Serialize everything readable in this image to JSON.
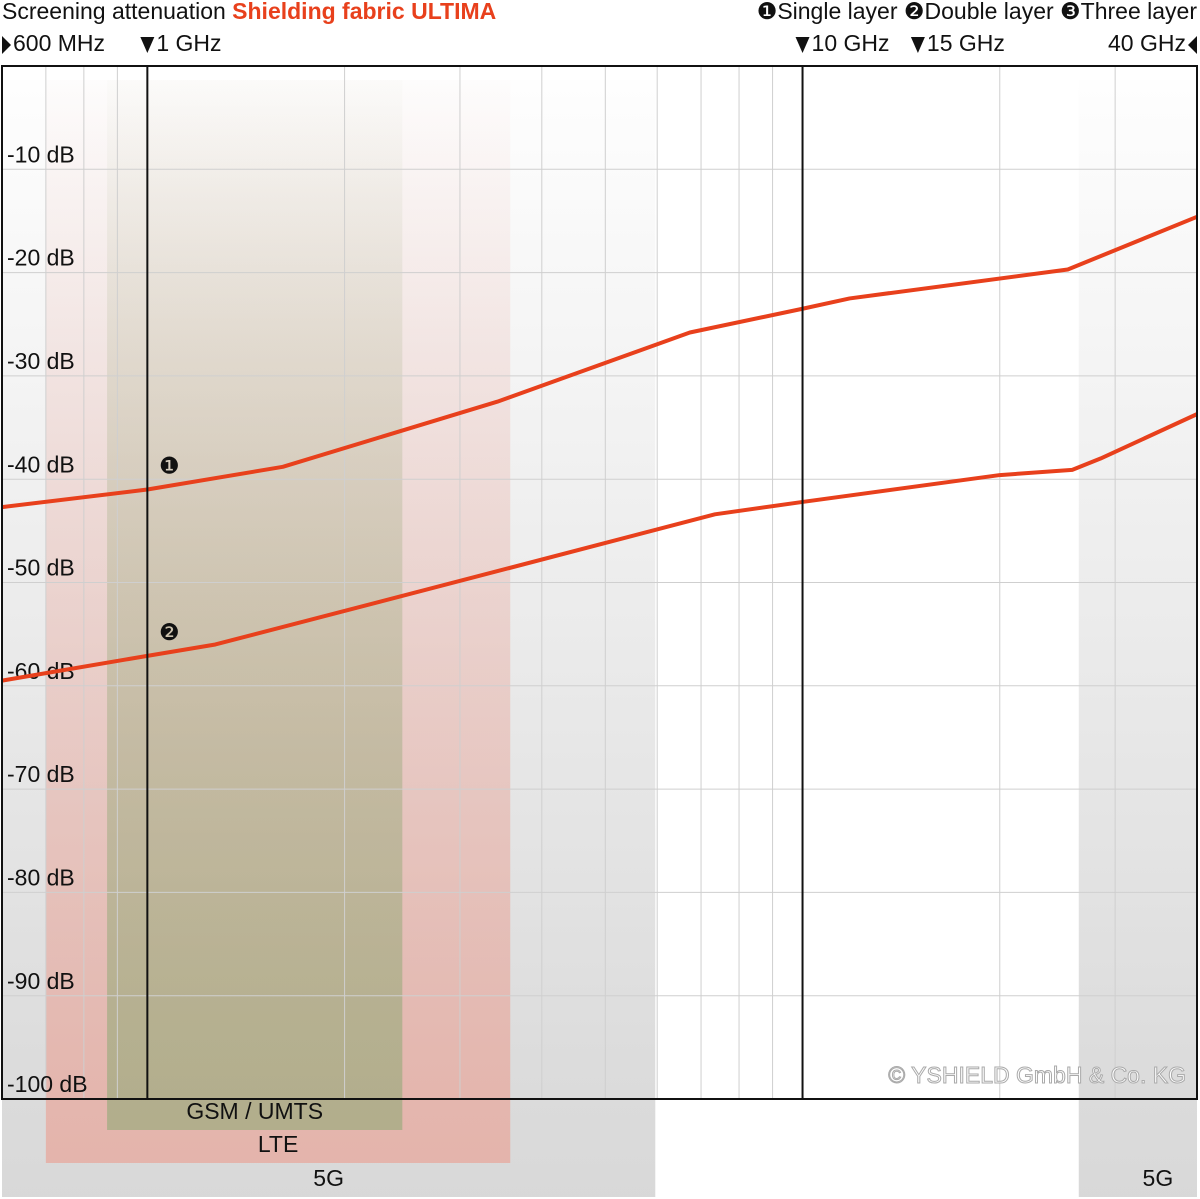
{
  "chart_data": {
    "type": "line",
    "title": "Screening attenuation",
    "subtitle": "Shielding fabric ULTIMA",
    "xlim": [
      0.6,
      40
    ],
    "log_x": true,
    "xticks": [
      {
        "value": 0.6,
        "label": "600 MHz"
      },
      {
        "value": 1,
        "label": "1 GHz"
      },
      {
        "value": 10,
        "label": "10 GHz"
      },
      {
        "value": 15,
        "label": "15 GHz"
      },
      {
        "value": 40,
        "label": "40 GHz"
      }
    ],
    "ylim": [
      -100,
      0
    ],
    "yticks": [
      {
        "value": -10,
        "label": "-10 dB"
      },
      {
        "value": -20,
        "label": "-20 dB"
      },
      {
        "value": -30,
        "label": "-30 dB"
      },
      {
        "value": -40,
        "label": "-40 dB"
      },
      {
        "value": -50,
        "label": "-50 dB"
      },
      {
        "value": -60,
        "label": "-60 dB"
      },
      {
        "value": -70,
        "label": "-70 dB"
      },
      {
        "value": -80,
        "label": "-80 dB"
      },
      {
        "value": -90,
        "label": "-90 dB"
      },
      {
        "value": -100,
        "label": "-100 dB"
      }
    ],
    "grid": true,
    "marker_lines": [
      1,
      10
    ],
    "series": [
      {
        "name": "Single layer",
        "marker": "❶",
        "color": "#e8401c",
        "x": [
          0.6,
          1,
          1.61,
          3.42,
          6.73,
          10,
          11.8,
          25.4,
          40
        ],
        "values": [
          -42.7,
          -41.0,
          -38.8,
          -32.5,
          -25.8,
          -23.5,
          -22.5,
          -19.7,
          -14.6
        ]
      },
      {
        "name": "Double layer",
        "marker": "❷",
        "color": "#e8401c",
        "x": [
          0.6,
          1,
          1.27,
          3.47,
          7.35,
          10,
          20.0,
          25.8,
          28.5,
          40
        ],
        "values": [
          -59.5,
          -57.1,
          -56.0,
          -48.8,
          -43.4,
          -42.2,
          -39.6,
          -39.1,
          -38.0,
          -33.7
        ]
      },
      {
        "name": "Three layer",
        "marker": "❸",
        "color": "#e8401c",
        "x": [],
        "values": []
      }
    ],
    "bands": [
      {
        "name": "5G",
        "range": [
          0.6,
          5.96
        ],
        "color": "#c8c8c8"
      },
      {
        "name": "LTE",
        "range": [
          0.7,
          3.58
        ],
        "color": "#e8a498"
      },
      {
        "name": "GSM / UMTS",
        "range": [
          0.868,
          2.45
        ],
        "color": "#9cab7e"
      },
      {
        "name": "5G",
        "range": [
          26.4,
          40
        ],
        "color": "#c8c8c8"
      }
    ],
    "copyright": "© YSHIELD GmbH & Co. KG"
  }
}
